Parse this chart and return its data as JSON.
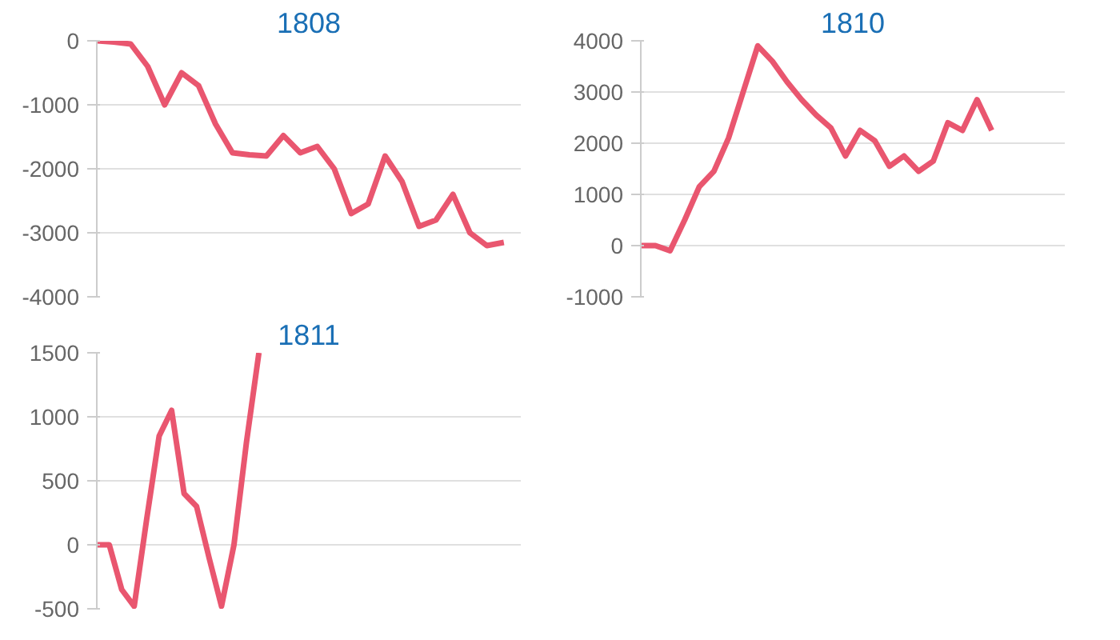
{
  "chart_data": [
    {
      "type": "line",
      "title": "1808",
      "categories": [
        null,
        null,
        null,
        null,
        null,
        null,
        null,
        null,
        null,
        null,
        null,
        null,
        null,
        null,
        null,
        null,
        null,
        null,
        null,
        null,
        null,
        null,
        null,
        null,
        null,
        null
      ],
      "series": [
        {
          "color": "#e9566f",
          "values": [
            0,
            -20,
            -50,
            -400,
            -1000,
            -500,
            -700,
            -1300,
            -1750,
            -1780,
            -1800,
            -1480,
            -1750,
            -1650,
            -2000,
            -2700,
            -2550,
            -1800,
            -2200,
            -2900,
            -2800,
            -2400,
            -3000,
            -3200,
            -3150,
            null
          ]
        }
      ],
      "ylim": [
        -4000,
        0
      ],
      "yticks": [
        -4000,
        -3000,
        -2000,
        -1000,
        0
      ],
      "grid": "y",
      "marker": "none",
      "line_style": "solid",
      "tick_labels": "y"
    },
    {
      "type": "line",
      "title": "1810",
      "categories": [
        null,
        null,
        null,
        null,
        null,
        null,
        null,
        null,
        null,
        null,
        null,
        null,
        null,
        null,
        null,
        null,
        null,
        null,
        null,
        null,
        null,
        null,
        null,
        null,
        null,
        null,
        null,
        null,
        null,
        null
      ],
      "series": [
        {
          "color": "#e9566f",
          "values": [
            0,
            0,
            -100,
            500,
            1150,
            1450,
            2100,
            3000,
            3900,
            3600,
            3200,
            2850,
            2550,
            2300,
            1750,
            2250,
            2050,
            1550,
            1750,
            1450,
            1650,
            2400,
            2250,
            2850,
            2250,
            null,
            null,
            null,
            null,
            null
          ]
        }
      ],
      "ylim": [
        -1000,
        4000
      ],
      "yticks": [
        -1000,
        0,
        1000,
        2000,
        3000,
        4000
      ],
      "grid": "y",
      "marker": "none",
      "line_style": "solid",
      "tick_labels": "y"
    },
    {
      "type": "line",
      "title": "1811",
      "categories": [
        null,
        null,
        null,
        null,
        null,
        null,
        null,
        null,
        null,
        null,
        null,
        null,
        null,
        null,
        null,
        null,
        null,
        null,
        null,
        null,
        null,
        null,
        null,
        null,
        null,
        null,
        null,
        null,
        null,
        null,
        null,
        null,
        null,
        null,
        null
      ],
      "series": [
        {
          "color": "#e9566f",
          "values": [
            0,
            0,
            -350,
            -480,
            200,
            850,
            1050,
            400,
            300,
            -100,
            -480,
            0,
            800,
            1500,
            null,
            null,
            null,
            null,
            null,
            null,
            null,
            null,
            null,
            null,
            null,
            null,
            null,
            null,
            null,
            null,
            null,
            null,
            null,
            null,
            null
          ]
        }
      ],
      "ylim": [
        -500,
        1500
      ],
      "yticks": [
        -500,
        0,
        500,
        1000,
        1500
      ],
      "grid": "y",
      "marker": "none",
      "line_style": "solid",
      "tick_labels": "y"
    }
  ]
}
